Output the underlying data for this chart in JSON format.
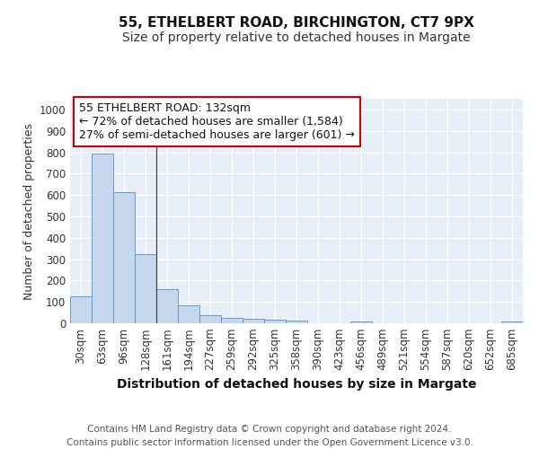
{
  "title_line1": "55, ETHELBERT ROAD, BIRCHINGTON, CT7 9PX",
  "title_line2": "Size of property relative to detached houses in Margate",
  "xlabel": "Distribution of detached houses by size in Margate",
  "ylabel": "Number of detached properties",
  "bar_values": [
    125,
    795,
    615,
    325,
    160,
    82,
    38,
    25,
    22,
    15,
    14,
    0,
    0,
    8,
    0,
    0,
    0,
    0,
    0,
    0,
    8
  ],
  "bar_labels": [
    "30sqm",
    "63sqm",
    "96sqm",
    "128sqm",
    "161sqm",
    "194sqm",
    "227sqm",
    "259sqm",
    "292sqm",
    "325sqm",
    "358sqm",
    "390sqm",
    "423sqm",
    "456sqm",
    "489sqm",
    "521sqm",
    "554sqm",
    "587sqm",
    "620sqm",
    "652sqm",
    "685sqm"
  ],
  "bar_color": "#c5d8ee",
  "bar_edge_color": "#5b8ec4",
  "annotation_line1": "55 ETHELBERT ROAD: 132sqm",
  "annotation_line2": "← 72% of detached houses are smaller (1,584)",
  "annotation_line3": "27% of semi-detached houses are larger (601) →",
  "annotation_box_color": "#ffffff",
  "annotation_box_edge_color": "#cc0000",
  "vline_x": 3.5,
  "ylim": [
    0,
    1050
  ],
  "yticks": [
    0,
    100,
    200,
    300,
    400,
    500,
    600,
    700,
    800,
    900,
    1000
  ],
  "background_color": "#e8eef8",
  "footer_text": "Contains HM Land Registry data © Crown copyright and database right 2024.\nContains public sector information licensed under the Open Government Licence v3.0.",
  "grid_color": "#ffffff",
  "title_fontsize": 11,
  "subtitle_fontsize": 10,
  "xlabel_fontsize": 10,
  "ylabel_fontsize": 9,
  "tick_fontsize": 8.5,
  "annotation_fontsize": 9,
  "footer_fontsize": 7.5
}
